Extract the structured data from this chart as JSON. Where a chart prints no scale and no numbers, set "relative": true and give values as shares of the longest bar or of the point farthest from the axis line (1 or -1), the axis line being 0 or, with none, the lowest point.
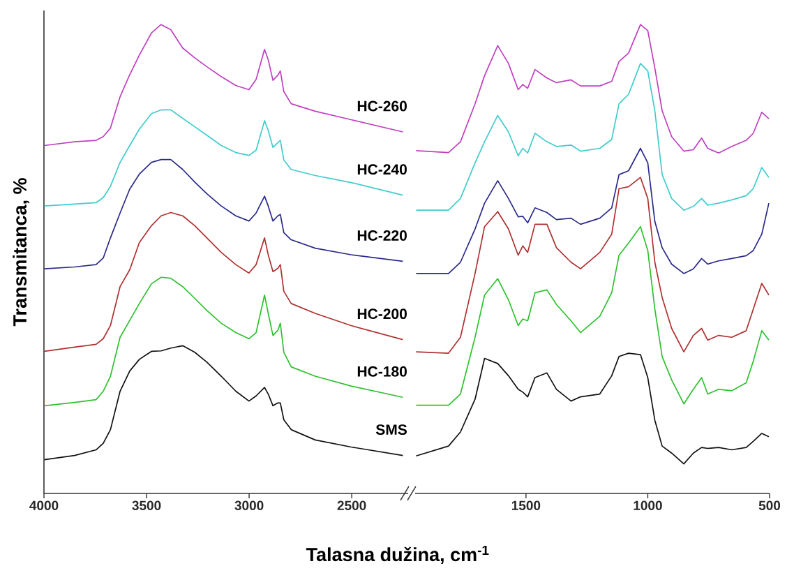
{
  "chart_data": [
    {
      "type": "line",
      "relative": true,
      "ylabel": "Transmitanca, %",
      "xlabel": "Talasna dužina, cm$^{-1}$",
      "xlim": [
        4000,
        2225
      ],
      "xticks": [
        4000,
        3500,
        3000,
        2500
      ],
      "line_style": "solid",
      "x": [
        3998,
        3851,
        3746,
        3711,
        3676,
        3629,
        3582,
        3535,
        3476,
        3429,
        3382,
        3324,
        3265,
        3206,
        3136,
        3065,
        3001,
        2966,
        2925,
        2907,
        2884,
        2860,
        2848,
        2831,
        2795,
        2678,
        2503,
        2251
      ],
      "series": [
        {
          "name": "HC-260",
          "color": "#c040c0",
          "values": [
            0.742,
            0.75,
            0.753,
            0.761,
            0.779,
            0.846,
            0.893,
            0.935,
            0.982,
            1,
            0.989,
            0.95,
            0.929,
            0.91,
            0.889,
            0.87,
            0.861,
            0.883,
            0.947,
            0.925,
            0.881,
            0.892,
            0.901,
            0.857,
            0.831,
            0.815,
            0.797,
            0.771
          ]
        },
        {
          "name": "HC-240",
          "color": "#40cccc",
          "values": [
            0.613,
            0.617,
            0.62,
            0.631,
            0.655,
            0.706,
            0.742,
            0.777,
            0.81,
            0.818,
            0.818,
            0.8,
            0.782,
            0.764,
            0.742,
            0.727,
            0.721,
            0.732,
            0.795,
            0.774,
            0.738,
            0.748,
            0.753,
            0.711,
            0.691,
            0.678,
            0.663,
            0.636
          ]
        },
        {
          "name": "HC-220",
          "color": "#2a2a8a",
          "values": [
            0.479,
            0.483,
            0.488,
            0.502,
            0.545,
            0.598,
            0.649,
            0.681,
            0.706,
            0.712,
            0.712,
            0.691,
            0.664,
            0.639,
            0.613,
            0.592,
            0.581,
            0.598,
            0.634,
            0.613,
            0.581,
            0.592,
            0.595,
            0.556,
            0.541,
            0.523,
            0.509,
            0.495
          ]
        },
        {
          "name": "HC-200",
          "color": "#b03030",
          "values": [
            0.303,
            0.312,
            0.318,
            0.33,
            0.358,
            0.441,
            0.477,
            0.535,
            0.571,
            0.592,
            0.599,
            0.592,
            0.571,
            0.545,
            0.514,
            0.488,
            0.47,
            0.488,
            0.545,
            0.509,
            0.473,
            0.48,
            0.488,
            0.431,
            0.405,
            0.384,
            0.358,
            0.328
          ]
        },
        {
          "name": "HC-180",
          "color": "#30c030",
          "values": [
            0.187,
            0.194,
            0.2,
            0.218,
            0.25,
            0.333,
            0.369,
            0.405,
            0.447,
            0.461,
            0.459,
            0.441,
            0.416,
            0.39,
            0.363,
            0.343,
            0.33,
            0.343,
            0.423,
            0.384,
            0.337,
            0.348,
            0.363,
            0.301,
            0.27,
            0.25,
            0.229,
            0.205
          ]
        },
        {
          "name": "SMS",
          "color": "#111111",
          "values": [
            0.072,
            0.081,
            0.093,
            0.107,
            0.136,
            0.218,
            0.261,
            0.286,
            0.303,
            0.304,
            0.31,
            0.315,
            0.301,
            0.28,
            0.25,
            0.218,
            0.197,
            0.208,
            0.226,
            0.212,
            0.187,
            0.193,
            0.193,
            0.157,
            0.136,
            0.114,
            0.099,
            0.081
          ]
        }
      ]
    },
    {
      "type": "line",
      "relative": true,
      "xlim": [
        1955,
        500
      ],
      "xticks": [
        1500,
        1000,
        500
      ],
      "line_style": "solid",
      "x": [
        1951,
        1818,
        1769,
        1709,
        1670,
        1616,
        1572,
        1532,
        1513,
        1493,
        1463,
        1414,
        1375,
        1315,
        1276,
        1197,
        1148,
        1118,
        1079,
        1030,
        1000,
        971,
        941,
        902,
        852,
        813,
        779,
        754,
        709,
        655,
        596,
        567,
        532,
        503
      ],
      "series": [
        {
          "color": "#c040c0",
          "values": [
            0.731,
            0.727,
            0.75,
            0.831,
            0.891,
            0.955,
            0.917,
            0.861,
            0.872,
            0.864,
            0.904,
            0.886,
            0.876,
            0.882,
            0.869,
            0.869,
            0.879,
            0.921,
            0.939,
            1,
            0.987,
            0.907,
            0.816,
            0.761,
            0.73,
            0.733,
            0.758,
            0.736,
            0.726,
            0.74,
            0.753,
            0.768,
            0.813,
            0.799
          ]
        },
        {
          "color": "#40cccc",
          "values": [
            0.604,
            0.604,
            0.629,
            0.705,
            0.75,
            0.806,
            0.771,
            0.72,
            0.736,
            0.726,
            0.768,
            0.75,
            0.74,
            0.743,
            0.73,
            0.736,
            0.755,
            0.831,
            0.851,
            0.917,
            0.901,
            0.816,
            0.68,
            0.629,
            0.604,
            0.612,
            0.629,
            0.615,
            0.619,
            0.626,
            0.635,
            0.65,
            0.695,
            0.674
          ]
        },
        {
          "color": "#2a2a8a",
          "values": [
            0.469,
            0.469,
            0.493,
            0.564,
            0.619,
            0.667,
            0.629,
            0.59,
            0.591,
            0.577,
            0.609,
            0.599,
            0.584,
            0.587,
            0.574,
            0.587,
            0.609,
            0.68,
            0.688,
            0.736,
            0.705,
            0.58,
            0.524,
            0.489,
            0.469,
            0.479,
            0.501,
            0.489,
            0.496,
            0.501,
            0.507,
            0.518,
            0.553,
            0.619
          ]
        },
        {
          "color": "#b03030",
          "values": [
            0.302,
            0.299,
            0.333,
            0.469,
            0.569,
            0.601,
            0.564,
            0.508,
            0.528,
            0.514,
            0.574,
            0.574,
            0.524,
            0.493,
            0.479,
            0.514,
            0.553,
            0.65,
            0.654,
            0.674,
            0.629,
            0.493,
            0.418,
            0.352,
            0.302,
            0.337,
            0.352,
            0.327,
            0.337,
            0.333,
            0.347,
            0.393,
            0.448,
            0.423
          ]
        },
        {
          "color": "#30c030",
          "values": [
            0.188,
            0.188,
            0.212,
            0.333,
            0.423,
            0.458,
            0.413,
            0.358,
            0.372,
            0.368,
            0.428,
            0.434,
            0.403,
            0.368,
            0.343,
            0.378,
            0.428,
            0.508,
            0.534,
            0.569,
            0.518,
            0.393,
            0.292,
            0.242,
            0.191,
            0.222,
            0.247,
            0.212,
            0.222,
            0.219,
            0.236,
            0.282,
            0.347,
            0.327
          ]
        },
        {
          "color": "#111111",
          "values": [
            0.08,
            0.101,
            0.131,
            0.201,
            0.288,
            0.277,
            0.251,
            0.222,
            0.216,
            0.206,
            0.247,
            0.257,
            0.222,
            0.197,
            0.206,
            0.212,
            0.251,
            0.292,
            0.299,
            0.296,
            0.247,
            0.156,
            0.101,
            0.086,
            0.063,
            0.086,
            0.098,
            0.096,
            0.098,
            0.093,
            0.098,
            0.111,
            0.128,
            0.121
          ]
        }
      ]
    }
  ]
}
